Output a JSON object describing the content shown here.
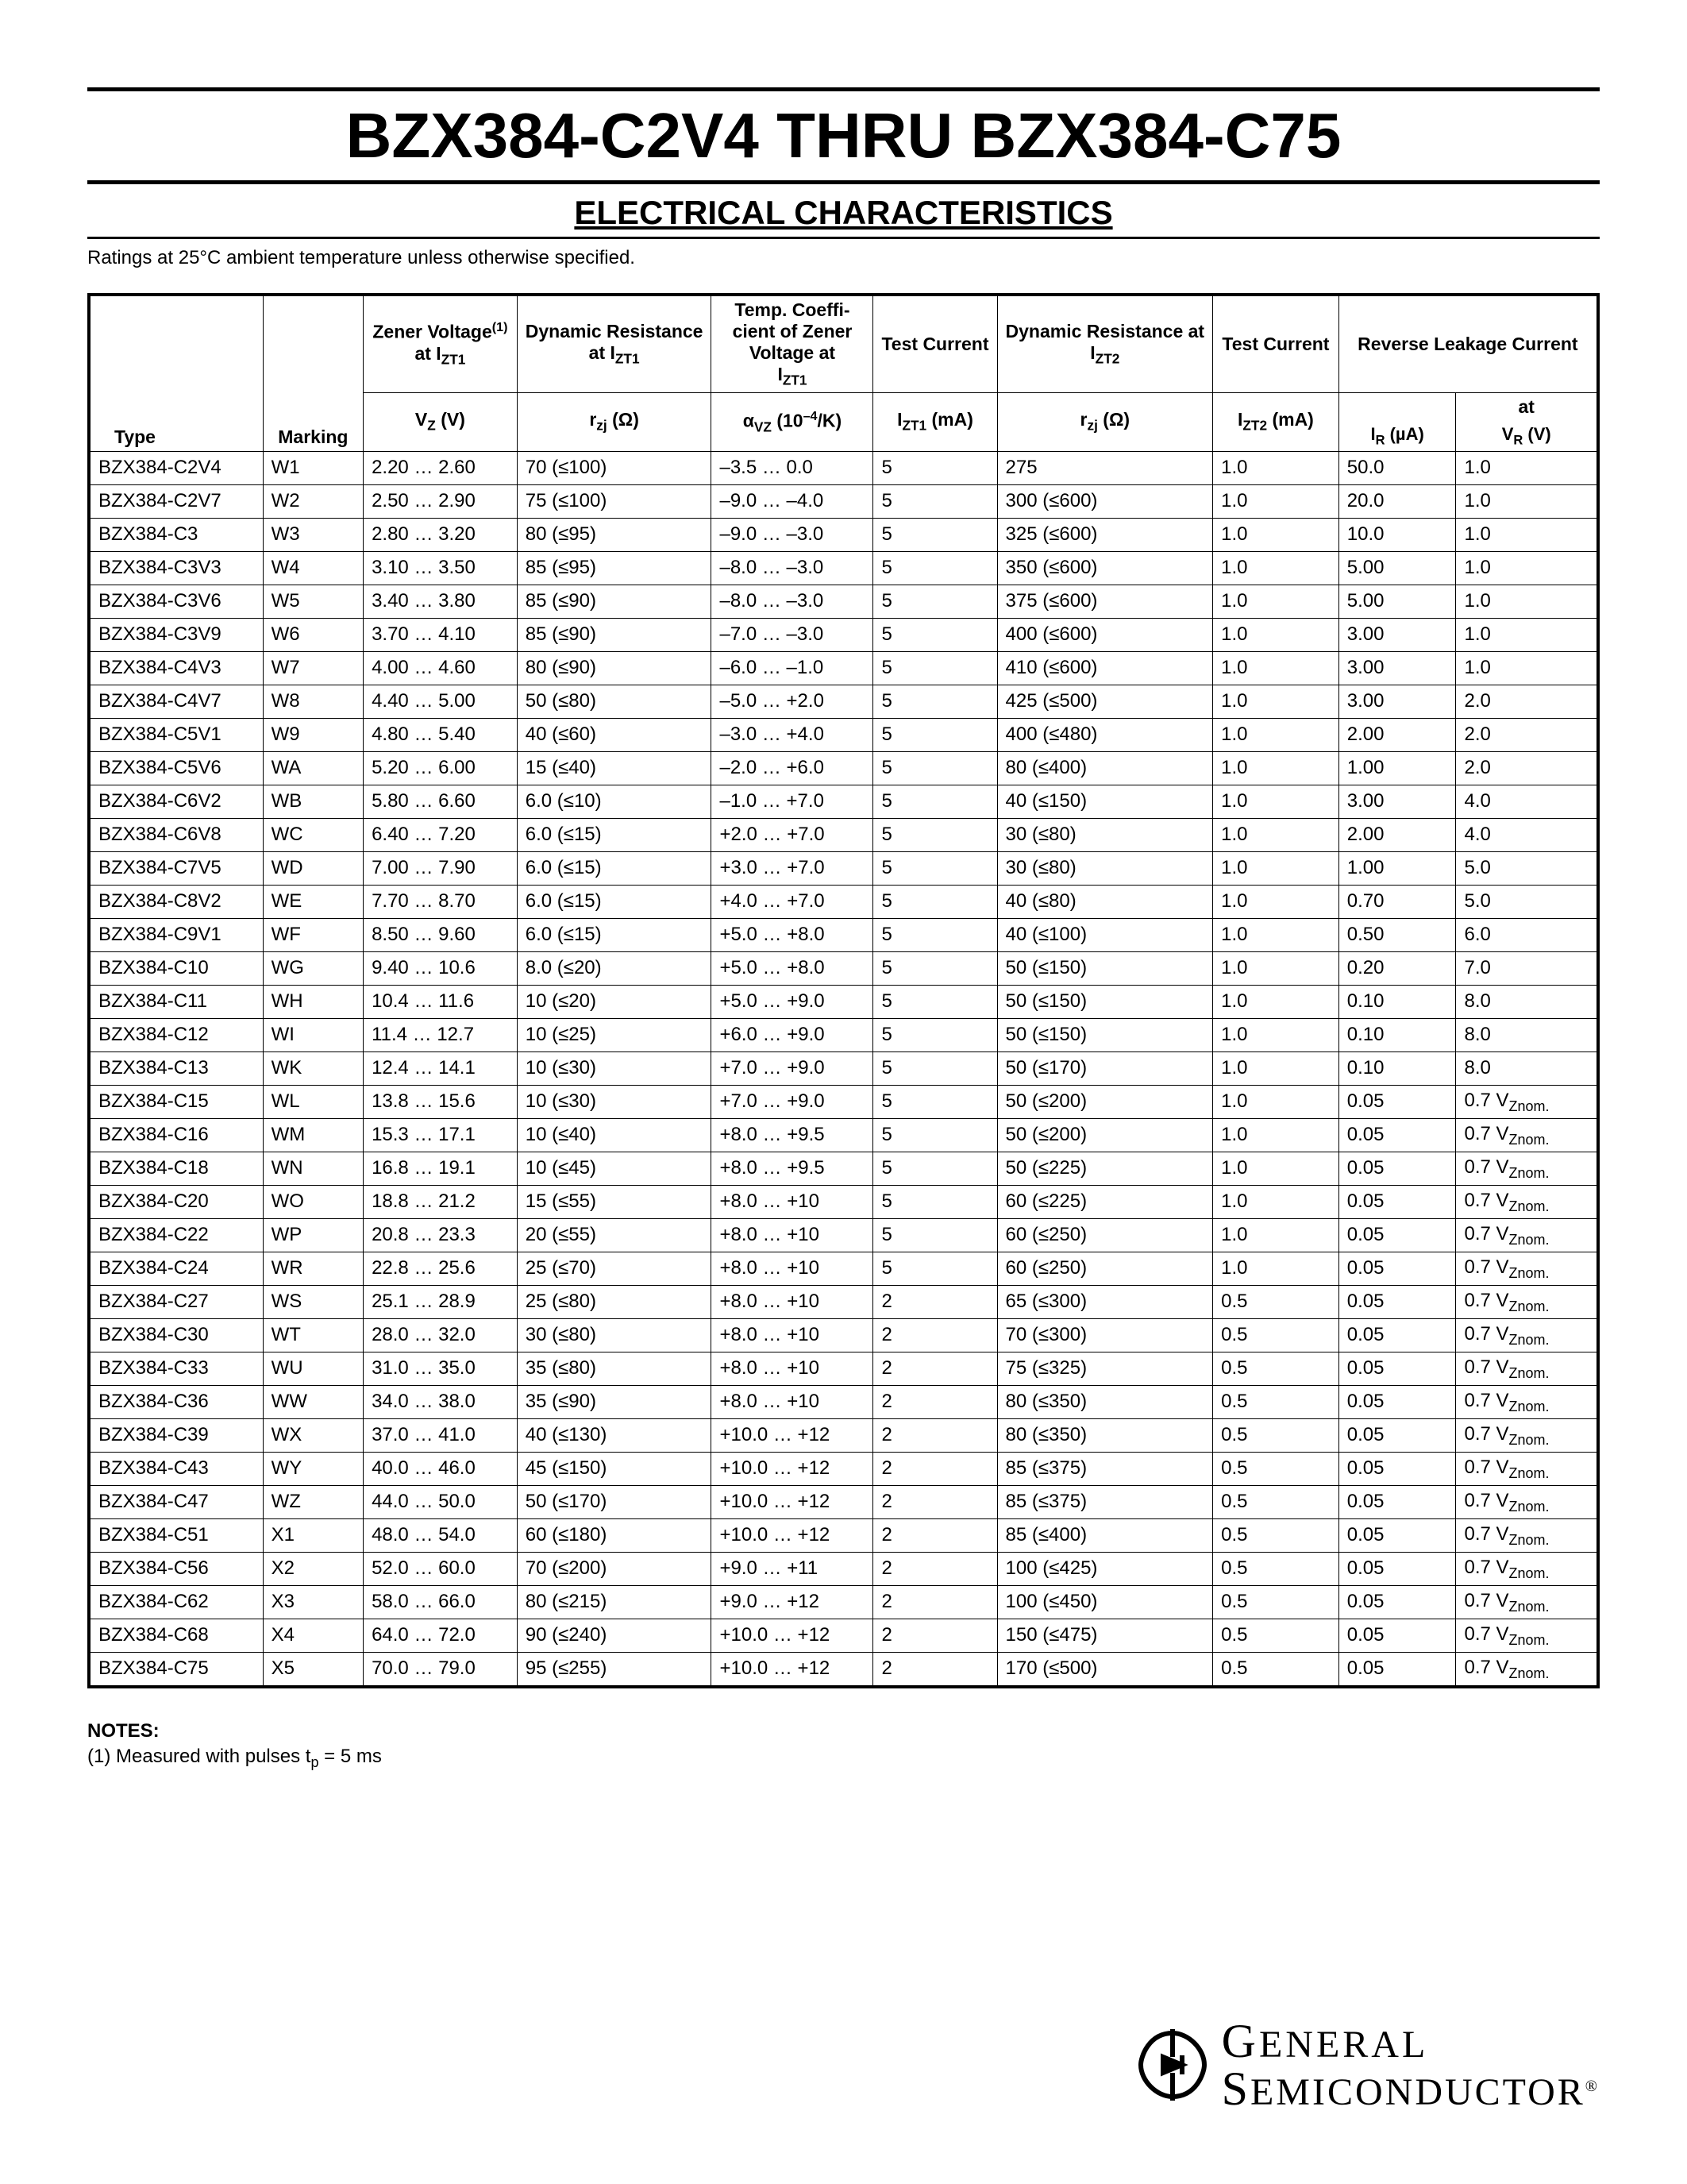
{
  "title": "BZX384-C2V4 THRU BZX384-C75",
  "subtitle": "ELECTRICAL CHARACTERISTICS",
  "ratings_note": "Ratings at 25°C ambient temperature unless otherwise specified.",
  "columns": {
    "c1_group": "Zener Voltage",
    "c1_group_sup": "(1)",
    "c1_group_sub": "at IZT1",
    "c2_group": "Dynamic Resistance",
    "c2_group_sub": "at IZT1",
    "c3_group": "Temp. Coeffi-\ncient of Zener Voltage at",
    "c3_group_sub": "IZT1",
    "c4_group": "Test Current",
    "c5_group": "Dynamic Resistance at",
    "c5_group_sub": "IZT2",
    "c6_group": "Test Current",
    "c7_group": "Reverse Leakage Current",
    "c7_at": "at",
    "h_type": "Type",
    "h_marking": "Marking",
    "h_vz": "VZ (V)",
    "h_rzj1": "rzj (Ω)",
    "h_avz": "αVZ (10⁻⁴/K)",
    "h_izt1": "IZT1 (mA)",
    "h_rzj2": "rzj (Ω)",
    "h_izt2": "IZT2 (mA)",
    "h_ir": "IR (µA)",
    "h_vr": "VR (V)"
  },
  "rows": [
    {
      "type": "BZX384-C2V4",
      "mark": "W1",
      "vz": "2.20 … 2.60",
      "rzj1": "70 (≤100)",
      "avz": "–3.5 … 0.0",
      "izt1": "5",
      "rzj2": "275",
      "izt2": "1.0",
      "ir": "50.0",
      "vr": "1.0"
    },
    {
      "type": "BZX384-C2V7",
      "mark": "W2",
      "vz": "2.50 … 2.90",
      "rzj1": "75 (≤100)",
      "avz": "–9.0 … –4.0",
      "izt1": "5",
      "rzj2": "300 (≤600)",
      "izt2": "1.0",
      "ir": "20.0",
      "vr": "1.0"
    },
    {
      "type": "BZX384-C3",
      "mark": "W3",
      "vz": "2.80 … 3.20",
      "rzj1": "80 (≤95)",
      "avz": "–9.0 … –3.0",
      "izt1": "5",
      "rzj2": "325 (≤600)",
      "izt2": "1.0",
      "ir": "10.0",
      "vr": "1.0"
    },
    {
      "type": "BZX384-C3V3",
      "mark": "W4",
      "vz": "3.10 … 3.50",
      "rzj1": "85 (≤95)",
      "avz": "–8.0 … –3.0",
      "izt1": "5",
      "rzj2": "350 (≤600)",
      "izt2": "1.0",
      "ir": "5.00",
      "vr": "1.0"
    },
    {
      "type": "BZX384-C3V6",
      "mark": "W5",
      "vz": "3.40 … 3.80",
      "rzj1": "85 (≤90)",
      "avz": "–8.0 … –3.0",
      "izt1": "5",
      "rzj2": "375 (≤600)",
      "izt2": "1.0",
      "ir": "5.00",
      "vr": "1.0"
    },
    {
      "type": "BZX384-C3V9",
      "mark": "W6",
      "vz": "3.70 … 4.10",
      "rzj1": "85 (≤90)",
      "avz": "–7.0 … –3.0",
      "izt1": "5",
      "rzj2": "400 (≤600)",
      "izt2": "1.0",
      "ir": "3.00",
      "vr": "1.0"
    },
    {
      "type": "BZX384-C4V3",
      "mark": "W7",
      "vz": "4.00 … 4.60",
      "rzj1": "80 (≤90)",
      "avz": "–6.0 … –1.0",
      "izt1": "5",
      "rzj2": "410 (≤600)",
      "izt2": "1.0",
      "ir": "3.00",
      "vr": "1.0"
    },
    {
      "type": "BZX384-C4V7",
      "mark": "W8",
      "vz": "4.40 … 5.00",
      "rzj1": "50 (≤80)",
      "avz": "–5.0 … +2.0",
      "izt1": "5",
      "rzj2": "425 (≤500)",
      "izt2": "1.0",
      "ir": "3.00",
      "vr": "2.0"
    },
    {
      "type": "BZX384-C5V1",
      "mark": "W9",
      "vz": "4.80 … 5.40",
      "rzj1": "40 (≤60)",
      "avz": "–3.0 … +4.0",
      "izt1": "5",
      "rzj2": "400 (≤480)",
      "izt2": "1.0",
      "ir": "2.00",
      "vr": "2.0"
    },
    {
      "type": "BZX384-C5V6",
      "mark": "WA",
      "vz": "5.20 … 6.00",
      "rzj1": "15 (≤40)",
      "avz": "–2.0 … +6.0",
      "izt1": "5",
      "rzj2": "80 (≤400)",
      "izt2": "1.0",
      "ir": "1.00",
      "vr": "2.0"
    },
    {
      "type": "BZX384-C6V2",
      "mark": "WB",
      "vz": "5.80 … 6.60",
      "rzj1": "6.0 (≤10)",
      "avz": "–1.0 … +7.0",
      "izt1": "5",
      "rzj2": "40 (≤150)",
      "izt2": "1.0",
      "ir": "3.00",
      "vr": "4.0"
    },
    {
      "type": "BZX384-C6V8",
      "mark": "WC",
      "vz": "6.40 … 7.20",
      "rzj1": "6.0 (≤15)",
      "avz": "+2.0 … +7.0",
      "izt1": "5",
      "rzj2": "30 (≤80)",
      "izt2": "1.0",
      "ir": "2.00",
      "vr": "4.0"
    },
    {
      "type": "BZX384-C7V5",
      "mark": "WD",
      "vz": "7.00 … 7.90",
      "rzj1": "6.0 (≤15)",
      "avz": "+3.0 … +7.0",
      "izt1": "5",
      "rzj2": "30 (≤80)",
      "izt2": "1.0",
      "ir": "1.00",
      "vr": "5.0"
    },
    {
      "type": "BZX384-C8V2",
      "mark": "WE",
      "vz": "7.70 … 8.70",
      "rzj1": "6.0 (≤15)",
      "avz": "+4.0 … +7.0",
      "izt1": "5",
      "rzj2": "40 (≤80)",
      "izt2": "1.0",
      "ir": "0.70",
      "vr": "5.0"
    },
    {
      "type": "BZX384-C9V1",
      "mark": "WF",
      "vz": "8.50 … 9.60",
      "rzj1": "6.0 (≤15)",
      "avz": "+5.0 … +8.0",
      "izt1": "5",
      "rzj2": "40 (≤100)",
      "izt2": "1.0",
      "ir": "0.50",
      "vr": "6.0"
    },
    {
      "type": "BZX384-C10",
      "mark": "WG",
      "vz": "9.40 … 10.6",
      "rzj1": "8.0 (≤20)",
      "avz": "+5.0 … +8.0",
      "izt1": "5",
      "rzj2": "50 (≤150)",
      "izt2": "1.0",
      "ir": "0.20",
      "vr": "7.0"
    },
    {
      "type": "BZX384-C11",
      "mark": "WH",
      "vz": "10.4 … 11.6",
      "rzj1": "10 (≤20)",
      "avz": "+5.0 … +9.0",
      "izt1": "5",
      "rzj2": "50 (≤150)",
      "izt2": "1.0",
      "ir": "0.10",
      "vr": "8.0"
    },
    {
      "type": "BZX384-C12",
      "mark": "WI",
      "vz": "11.4 … 12.7",
      "rzj1": "10 (≤25)",
      "avz": "+6.0 … +9.0",
      "izt1": "5",
      "rzj2": "50 (≤150)",
      "izt2": "1.0",
      "ir": "0.10",
      "vr": "8.0"
    },
    {
      "type": "BZX384-C13",
      "mark": "WK",
      "vz": "12.4 … 14.1",
      "rzj1": "10 (≤30)",
      "avz": "+7.0 … +9.0",
      "izt1": "5",
      "rzj2": "50 (≤170)",
      "izt2": "1.0",
      "ir": "0.10",
      "vr": "8.0"
    },
    {
      "type": "BZX384-C15",
      "mark": "WL",
      "vz": "13.8 … 15.6",
      "rzj1": "10 (≤30)",
      "avz": "+7.0 … +9.0",
      "izt1": "5",
      "rzj2": "50 (≤200)",
      "izt2": "1.0",
      "ir": "0.05",
      "vr": "0.7 VZnom."
    },
    {
      "type": "BZX384-C16",
      "mark": "WM",
      "vz": "15.3 … 17.1",
      "rzj1": "10 (≤40)",
      "avz": "+8.0 … +9.5",
      "izt1": "5",
      "rzj2": "50 (≤200)",
      "izt2": "1.0",
      "ir": "0.05",
      "vr": "0.7 VZnom."
    },
    {
      "type": "BZX384-C18",
      "mark": "WN",
      "vz": "16.8 … 19.1",
      "rzj1": "10 (≤45)",
      "avz": "+8.0 … +9.5",
      "izt1": "5",
      "rzj2": "50 (≤225)",
      "izt2": "1.0",
      "ir": "0.05",
      "vr": "0.7 VZnom."
    },
    {
      "type": "BZX384-C20",
      "mark": "WO",
      "vz": "18.8 … 21.2",
      "rzj1": "15 (≤55)",
      "avz": "+8.0 … +10",
      "izt1": "5",
      "rzj2": "60 (≤225)",
      "izt2": "1.0",
      "ir": "0.05",
      "vr": "0.7 VZnom."
    },
    {
      "type": "BZX384-C22",
      "mark": "WP",
      "vz": "20.8 … 23.3",
      "rzj1": "20 (≤55)",
      "avz": "+8.0 … +10",
      "izt1": "5",
      "rzj2": "60 (≤250)",
      "izt2": "1.0",
      "ir": "0.05",
      "vr": "0.7 VZnom."
    },
    {
      "type": "BZX384-C24",
      "mark": "WR",
      "vz": "22.8 … 25.6",
      "rzj1": "25 (≤70)",
      "avz": "+8.0 … +10",
      "izt1": "5",
      "rzj2": "60 (≤250)",
      "izt2": "1.0",
      "ir": "0.05",
      "vr": "0.7 VZnom."
    },
    {
      "type": "BZX384-C27",
      "mark": "WS",
      "vz": "25.1 … 28.9",
      "rzj1": "25 (≤80)",
      "avz": "+8.0 … +10",
      "izt1": "2",
      "rzj2": "65 (≤300)",
      "izt2": "0.5",
      "ir": "0.05",
      "vr": "0.7 VZnom."
    },
    {
      "type": "BZX384-C30",
      "mark": "WT",
      "vz": "28.0 … 32.0",
      "rzj1": "30 (≤80)",
      "avz": "+8.0 … +10",
      "izt1": "2",
      "rzj2": "70 (≤300)",
      "izt2": "0.5",
      "ir": "0.05",
      "vr": "0.7 VZnom."
    },
    {
      "type": "BZX384-C33",
      "mark": "WU",
      "vz": "31.0 … 35.0",
      "rzj1": "35 (≤80)",
      "avz": "+8.0 … +10",
      "izt1": "2",
      "rzj2": "75 (≤325)",
      "izt2": "0.5",
      "ir": "0.05",
      "vr": "0.7 VZnom."
    },
    {
      "type": "BZX384-C36",
      "mark": "WW",
      "vz": "34.0 … 38.0",
      "rzj1": "35 (≤90)",
      "avz": "+8.0 … +10",
      "izt1": "2",
      "rzj2": "80 (≤350)",
      "izt2": "0.5",
      "ir": "0.05",
      "vr": "0.7 VZnom."
    },
    {
      "type": "BZX384-C39",
      "mark": "WX",
      "vz": "37.0 … 41.0",
      "rzj1": "40 (≤130)",
      "avz": "+10.0 … +12",
      "izt1": "2",
      "rzj2": "80 (≤350)",
      "izt2": "0.5",
      "ir": "0.05",
      "vr": "0.7 VZnom."
    },
    {
      "type": "BZX384-C43",
      "mark": "WY",
      "vz": "40.0 … 46.0",
      "rzj1": "45 (≤150)",
      "avz": "+10.0 … +12",
      "izt1": "2",
      "rzj2": "85 (≤375)",
      "izt2": "0.5",
      "ir": "0.05",
      "vr": "0.7 VZnom."
    },
    {
      "type": "BZX384-C47",
      "mark": "WZ",
      "vz": "44.0 … 50.0",
      "rzj1": "50 (≤170)",
      "avz": "+10.0 … +12",
      "izt1": "2",
      "rzj2": "85 (≤375)",
      "izt2": "0.5",
      "ir": "0.05",
      "vr": "0.7 VZnom."
    },
    {
      "type": "BZX384-C51",
      "mark": "X1",
      "vz": "48.0 … 54.0",
      "rzj1": "60 (≤180)",
      "avz": "+10.0 … +12",
      "izt1": "2",
      "rzj2": "85 (≤400)",
      "izt2": "0.5",
      "ir": "0.05",
      "vr": "0.7 VZnom."
    },
    {
      "type": "BZX384-C56",
      "mark": "X2",
      "vz": "52.0 … 60.0",
      "rzj1": "70 (≤200)",
      "avz": "+9.0 … +11",
      "izt1": "2",
      "rzj2": "100 (≤425)",
      "izt2": "0.5",
      "ir": "0.05",
      "vr": "0.7 VZnom."
    },
    {
      "type": "BZX384-C62",
      "mark": "X3",
      "vz": "58.0 … 66.0",
      "rzj1": "80 (≤215)",
      "avz": "+9.0 … +12",
      "izt1": "2",
      "rzj2": "100 (≤450)",
      "izt2": "0.5",
      "ir": "0.05",
      "vr": "0.7 VZnom."
    },
    {
      "type": "BZX384-C68",
      "mark": "X4",
      "vz": "64.0 … 72.0",
      "rzj1": "90 (≤240)",
      "avz": "+10.0 … +12",
      "izt1": "2",
      "rzj2": "150 (≤475)",
      "izt2": "0.5",
      "ir": "0.05",
      "vr": "0.7 VZnom."
    },
    {
      "type": "BZX384-C75",
      "mark": "X5",
      "vz": "70.0 … 79.0",
      "rzj1": "95 (≤255)",
      "avz": "+10.0 … +12",
      "izt1": "2",
      "rzj2": "170 (≤500)",
      "izt2": "0.5",
      "ir": "0.05",
      "vr": "0.7 VZnom."
    }
  ],
  "notes_heading": "NOTES:",
  "notes_line1": "(1) Measured with pulses tp = 5 ms",
  "logo_line1": "General",
  "logo_line2": "Semiconductor",
  "logo_reg": "®",
  "styling": {
    "title_fontsize": 80,
    "subtitle_fontsize": 42,
    "body_fontsize": 24,
    "table_fontsize": 24,
    "border_color": "#000000",
    "background_color": "#ffffff"
  }
}
